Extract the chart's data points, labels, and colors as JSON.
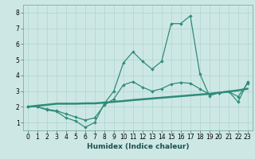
{
  "xlabel": "Humidex (Indice chaleur)",
  "x": [
    0,
    1,
    2,
    3,
    4,
    5,
    6,
    7,
    8,
    9,
    10,
    11,
    12,
    13,
    14,
    15,
    16,
    17,
    18,
    19,
    20,
    21,
    22,
    23
  ],
  "y_main": [
    2.0,
    2.0,
    1.8,
    1.7,
    1.3,
    1.1,
    0.7,
    1.0,
    2.2,
    3.0,
    4.8,
    5.5,
    4.9,
    4.4,
    4.9,
    7.3,
    7.3,
    7.8,
    4.1,
    2.7,
    2.9,
    3.0,
    2.3,
    3.6
  ],
  "y_trend": [
    2.0,
    2.07,
    2.13,
    2.2,
    2.2,
    2.2,
    2.22,
    2.22,
    2.27,
    2.32,
    2.37,
    2.43,
    2.48,
    2.53,
    2.58,
    2.63,
    2.68,
    2.73,
    2.78,
    2.83,
    2.9,
    2.97,
    3.05,
    3.15
  ],
  "y_mid": [
    2.0,
    2.0,
    1.85,
    1.75,
    1.55,
    1.35,
    1.15,
    1.3,
    2.1,
    2.5,
    3.4,
    3.6,
    3.25,
    3.0,
    3.15,
    3.45,
    3.55,
    3.5,
    3.15,
    2.8,
    2.88,
    2.97,
    2.65,
    3.5
  ],
  "line_color": "#2e8b7a",
  "bg_color": "#cde8e4",
  "grid_color": "#afd4ce",
  "xlim": [
    -0.5,
    23.5
  ],
  "ylim": [
    0.5,
    8.5
  ],
  "xticks": [
    0,
    1,
    2,
    3,
    4,
    5,
    6,
    7,
    8,
    9,
    10,
    11,
    12,
    13,
    14,
    15,
    16,
    17,
    18,
    19,
    20,
    21,
    22,
    23
  ],
  "yticks": [
    1,
    2,
    3,
    4,
    5,
    6,
    7,
    8
  ],
  "marker": "D",
  "markersize": 2.2,
  "linewidth": 0.9,
  "trend_linewidth": 1.8,
  "tick_fontsize": 5.5,
  "xlabel_fontsize": 6.5
}
